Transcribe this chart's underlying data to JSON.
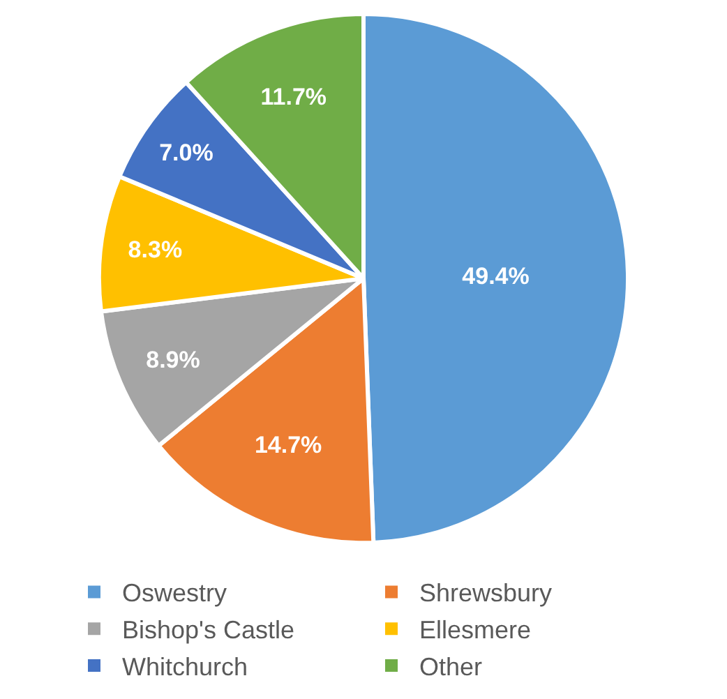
{
  "chart_data": {
    "type": "pie",
    "categories": [
      "Oswestry",
      "Shrewsbury",
      "Bishop's Castle",
      "Ellesmere",
      "Whitchurch",
      "Other"
    ],
    "values": [
      49.4,
      14.7,
      8.9,
      8.3,
      7.0,
      11.7
    ],
    "value_labels": [
      "49.4%",
      "14.7%",
      "8.9%",
      "8.3%",
      "7.0%",
      "11.7%"
    ],
    "colors": [
      "#5b9bd5",
      "#ed7d31",
      "#a5a5a5",
      "#ffc000",
      "#4472c4",
      "#70ad47"
    ],
    "legend": "bottom"
  }
}
